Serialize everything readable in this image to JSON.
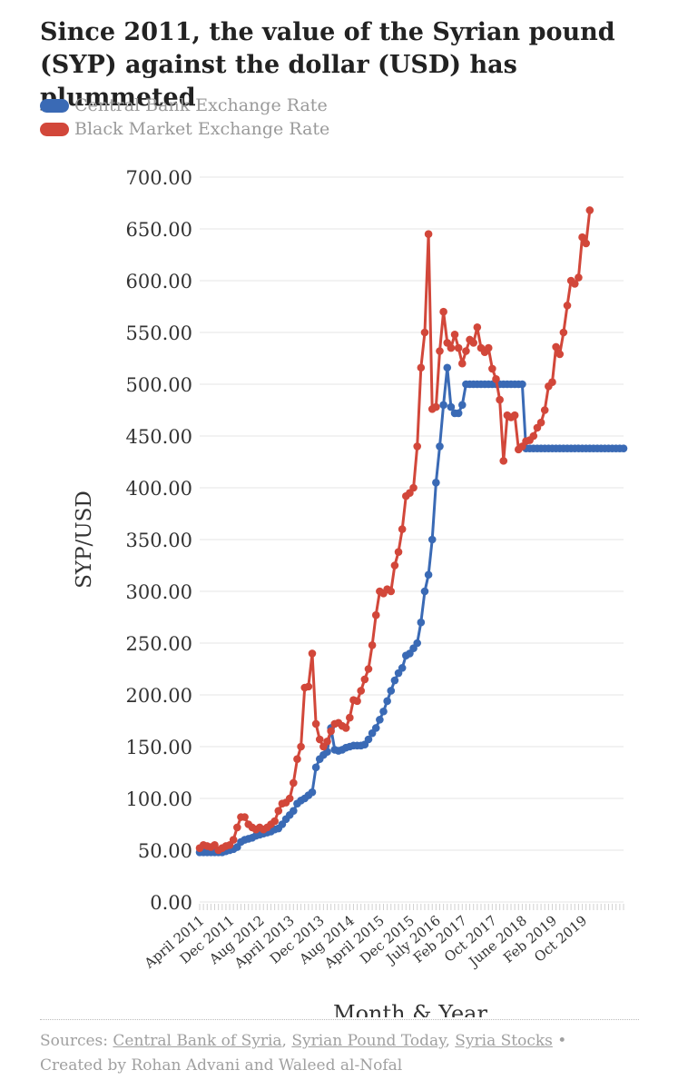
{
  "title": "Since 2011, the value of the Syrian pound (SYP) against the dollar (USD) has plummeted",
  "legend": [
    {
      "label": "Central Bank Exchange Rate",
      "color": "#3a6ab5"
    },
    {
      "label": "Black Market Exchange Rate",
      "color": "#d2473a"
    }
  ],
  "footer": {
    "prefix": "Sources: ",
    "source1": "Central Bank of Syria",
    "sep1": ", ",
    "source2": "Syrian Pound Today",
    "sep2": ", ",
    "source3": "Syria Stocks",
    "bullet": " •",
    "credit": "Created by Rohan Advani and Waleed al-Nofal"
  },
  "chart_data": {
    "type": "line",
    "title": "Since 2011, the value of the Syrian pound (SYP) against the dollar (USD) has plummeted",
    "xlabel": "Month & Year",
    "ylabel": "SYP/USD",
    "ylim": [
      0,
      700
    ],
    "yticks": [
      "0.00",
      "50.00",
      "100.00",
      "150.00",
      "200.00",
      "250.00",
      "300.00",
      "350.00",
      "400.00",
      "450.00",
      "500.00",
      "550.00",
      "600.00",
      "650.00",
      "700.00"
    ],
    "grid": true,
    "legend_position": "top-left",
    "x_tick_labels": [
      "April 2011",
      "Dec 2011",
      "Aug 2012",
      "April 2013",
      "Dec 2013",
      "Aug 2014",
      "April 2015",
      "Dec 2015",
      "July 2016",
      "Feb 2017",
      "Oct 2017",
      "June 2018",
      "Feb 2019",
      "Oct 2019"
    ],
    "x_tick_index": [
      0,
      8,
      16,
      24,
      32,
      40,
      48,
      56,
      63,
      70,
      78,
      86,
      94,
      102
    ],
    "series": [
      {
        "name": "Central Bank Exchange Rate",
        "color": "#3a6ab5",
        "values": [
          48,
          48,
          48,
          48,
          48,
          48,
          48,
          49,
          50,
          51,
          53,
          58,
          60,
          61,
          62,
          64,
          65,
          66,
          67,
          68,
          70,
          71,
          75,
          80,
          84,
          88,
          95,
          98,
          100,
          103,
          106,
          130,
          138,
          142,
          145,
          168,
          147,
          146,
          147,
          149,
          150,
          151,
          151,
          151,
          152,
          157,
          163,
          168,
          176,
          184,
          194,
          204,
          214,
          221,
          226,
          238,
          240,
          245,
          250,
          270,
          300,
          316,
          350,
          405,
          440,
          480,
          516,
          478,
          472,
          472,
          480,
          500,
          500,
          500,
          500,
          500,
          500,
          500,
          500,
          500,
          500,
          500,
          500,
          500,
          500,
          500,
          500,
          438,
          438,
          438,
          438,
          438,
          438,
          438,
          438,
          438,
          438,
          438,
          438,
          438,
          438,
          438,
          438,
          438,
          438,
          438,
          438,
          438,
          438,
          438,
          438,
          438,
          438,
          438
        ]
      },
      {
        "name": "Black Market Exchange Rate",
        "color": "#d2473a",
        "values": [
          52,
          55,
          54,
          53,
          55,
          50,
          52,
          54,
          55,
          60,
          72,
          82,
          82,
          75,
          72,
          70,
          72,
          70,
          72,
          75,
          78,
          88,
          95,
          96,
          100,
          115,
          138,
          150,
          207,
          208,
          240,
          172,
          157,
          150,
          155,
          165,
          172,
          173,
          170,
          168,
          178,
          195,
          194,
          204,
          215,
          225,
          248,
          277,
          300,
          298,
          302,
          300,
          325,
          338,
          360,
          392,
          395,
          400,
          440,
          516,
          550,
          645,
          476,
          478,
          532,
          570,
          540,
          535,
          548,
          535,
          520,
          532,
          543,
          540,
          555,
          535,
          531,
          535,
          515,
          505,
          485,
          426,
          470,
          468,
          470,
          437,
          440,
          445,
          446,
          450,
          458,
          463,
          475,
          498,
          502,
          536,
          529,
          550,
          576,
          600,
          597,
          603,
          642,
          636,
          668
        ]
      }
    ]
  }
}
